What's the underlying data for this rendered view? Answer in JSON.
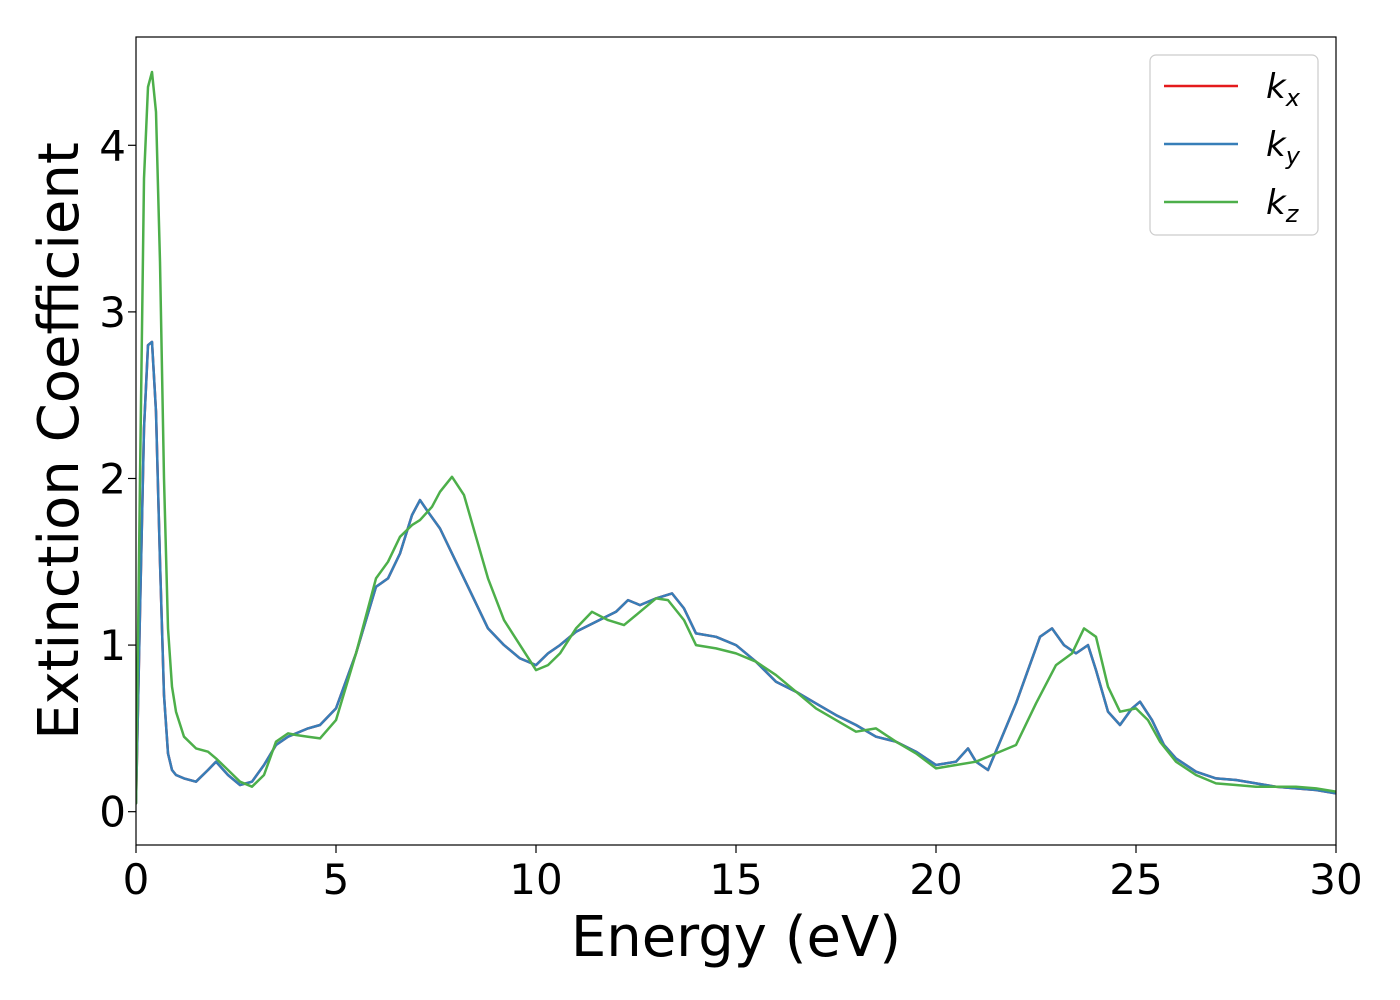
{
  "chart_data": {
    "type": "line",
    "title": "",
    "xlabel": "Energy (eV)",
    "ylabel": "Extinction Coefficient",
    "xlim": [
      0,
      30
    ],
    "ylim": [
      -0.2,
      4.65
    ],
    "xticks": [
      0,
      5,
      10,
      15,
      20,
      25,
      30
    ],
    "yticks": [
      0,
      1,
      2,
      3,
      4
    ],
    "grid": false,
    "legend_position": "top-right",
    "series": [
      {
        "name": "k_x",
        "legend_main": "k",
        "legend_sub": "x",
        "color": "#e41a1c",
        "x": [
          0,
          0.1,
          0.2,
          0.3,
          0.4,
          0.5,
          0.6,
          0.7,
          0.8,
          0.9,
          1.0,
          1.2,
          1.5,
          1.8,
          2.0,
          2.3,
          2.6,
          2.9,
          3.2,
          3.5,
          3.8,
          4.0,
          4.3,
          4.6,
          5.0,
          5.5,
          6.0,
          6.3,
          6.6,
          6.9,
          7.1,
          7.3,
          7.6,
          8.0,
          8.4,
          8.8,
          9.2,
          9.6,
          10.0,
          10.3,
          10.6,
          11.0,
          11.5,
          12.0,
          12.3,
          12.6,
          13.0,
          13.4,
          13.7,
          14.0,
          14.5,
          15.0,
          15.5,
          16.0,
          16.5,
          17.0,
          17.5,
          18.0,
          18.5,
          19.0,
          19.5,
          20.0,
          20.5,
          20.8,
          21.0,
          21.3,
          21.6,
          22.0,
          22.3,
          22.6,
          22.9,
          23.2,
          23.5,
          23.8,
          24.0,
          24.3,
          24.6,
          24.9,
          25.1,
          25.4,
          25.7,
          26.0,
          26.5,
          27.0,
          27.5,
          28.0,
          28.5,
          29.0,
          29.5,
          30.0
        ],
        "y": [
          0.05,
          1.2,
          2.3,
          2.8,
          2.82,
          2.4,
          1.5,
          0.7,
          0.35,
          0.25,
          0.22,
          0.2,
          0.18,
          0.25,
          0.3,
          0.22,
          0.16,
          0.18,
          0.28,
          0.4,
          0.45,
          0.47,
          0.5,
          0.52,
          0.62,
          0.95,
          1.35,
          1.4,
          1.55,
          1.78,
          1.87,
          1.8,
          1.7,
          1.5,
          1.3,
          1.1,
          1.0,
          0.92,
          0.88,
          0.95,
          1.0,
          1.08,
          1.14,
          1.2,
          1.27,
          1.24,
          1.28,
          1.31,
          1.22,
          1.07,
          1.05,
          1.0,
          0.9,
          0.78,
          0.72,
          0.65,
          0.58,
          0.52,
          0.45,
          0.42,
          0.36,
          0.28,
          0.3,
          0.38,
          0.3,
          0.25,
          0.42,
          0.65,
          0.85,
          1.05,
          1.1,
          1.0,
          0.95,
          1.0,
          0.85,
          0.6,
          0.52,
          0.62,
          0.66,
          0.55,
          0.4,
          0.32,
          0.24,
          0.2,
          0.19,
          0.17,
          0.15,
          0.14,
          0.13,
          0.11
        ]
      },
      {
        "name": "k_y",
        "legend_main": "k",
        "legend_sub": "y",
        "color": "#377eb8",
        "x": [
          0,
          0.1,
          0.2,
          0.3,
          0.4,
          0.5,
          0.6,
          0.7,
          0.8,
          0.9,
          1.0,
          1.2,
          1.5,
          1.8,
          2.0,
          2.3,
          2.6,
          2.9,
          3.2,
          3.5,
          3.8,
          4.0,
          4.3,
          4.6,
          5.0,
          5.5,
          6.0,
          6.3,
          6.6,
          6.9,
          7.1,
          7.3,
          7.6,
          8.0,
          8.4,
          8.8,
          9.2,
          9.6,
          10.0,
          10.3,
          10.6,
          11.0,
          11.5,
          12.0,
          12.3,
          12.6,
          13.0,
          13.4,
          13.7,
          14.0,
          14.5,
          15.0,
          15.5,
          16.0,
          16.5,
          17.0,
          17.5,
          18.0,
          18.5,
          19.0,
          19.5,
          20.0,
          20.5,
          20.8,
          21.0,
          21.3,
          21.6,
          22.0,
          22.3,
          22.6,
          22.9,
          23.2,
          23.5,
          23.8,
          24.0,
          24.3,
          24.6,
          24.9,
          25.1,
          25.4,
          25.7,
          26.0,
          26.5,
          27.0,
          27.5,
          28.0,
          28.5,
          29.0,
          29.5,
          30.0
        ],
        "y": [
          0.05,
          1.2,
          2.3,
          2.8,
          2.82,
          2.4,
          1.5,
          0.7,
          0.35,
          0.25,
          0.22,
          0.2,
          0.18,
          0.25,
          0.3,
          0.22,
          0.16,
          0.18,
          0.28,
          0.4,
          0.45,
          0.47,
          0.5,
          0.52,
          0.62,
          0.95,
          1.35,
          1.4,
          1.55,
          1.78,
          1.87,
          1.8,
          1.7,
          1.5,
          1.3,
          1.1,
          1.0,
          0.92,
          0.88,
          0.95,
          1.0,
          1.08,
          1.14,
          1.2,
          1.27,
          1.24,
          1.28,
          1.31,
          1.22,
          1.07,
          1.05,
          1.0,
          0.9,
          0.78,
          0.72,
          0.65,
          0.58,
          0.52,
          0.45,
          0.42,
          0.36,
          0.28,
          0.3,
          0.38,
          0.3,
          0.25,
          0.42,
          0.65,
          0.85,
          1.05,
          1.1,
          1.0,
          0.95,
          1.0,
          0.85,
          0.6,
          0.52,
          0.62,
          0.66,
          0.55,
          0.4,
          0.32,
          0.24,
          0.2,
          0.19,
          0.17,
          0.15,
          0.14,
          0.13,
          0.11
        ]
      },
      {
        "name": "k_z",
        "legend_main": "k",
        "legend_sub": "z",
        "color": "#4daf4a",
        "x": [
          0,
          0.1,
          0.2,
          0.3,
          0.4,
          0.5,
          0.6,
          0.7,
          0.8,
          0.9,
          1.0,
          1.2,
          1.5,
          1.8,
          2.0,
          2.3,
          2.6,
          2.9,
          3.2,
          3.5,
          3.8,
          4.0,
          4.3,
          4.6,
          5.0,
          5.5,
          6.0,
          6.3,
          6.6,
          6.9,
          7.1,
          7.4,
          7.6,
          7.9,
          8.2,
          8.5,
          8.8,
          9.2,
          9.6,
          10.0,
          10.3,
          10.6,
          11.0,
          11.4,
          11.8,
          12.2,
          12.6,
          13.0,
          13.3,
          13.7,
          14.0,
          14.5,
          15.0,
          15.5,
          16.0,
          16.5,
          17.0,
          17.5,
          18.0,
          18.5,
          19.0,
          19.5,
          20.0,
          20.5,
          21.0,
          21.5,
          22.0,
          22.5,
          23.0,
          23.4,
          23.7,
          24.0,
          24.3,
          24.6,
          25.0,
          25.3,
          25.6,
          26.0,
          26.5,
          27.0,
          27.5,
          28.0,
          28.5,
          29.0,
          29.5,
          30.0
        ],
        "y": [
          0.05,
          2.0,
          3.8,
          4.35,
          4.44,
          4.2,
          3.3,
          2.0,
          1.1,
          0.75,
          0.6,
          0.45,
          0.38,
          0.36,
          0.32,
          0.25,
          0.18,
          0.15,
          0.22,
          0.42,
          0.47,
          0.46,
          0.45,
          0.44,
          0.55,
          0.95,
          1.4,
          1.5,
          1.65,
          1.72,
          1.75,
          1.83,
          1.92,
          2.01,
          1.9,
          1.65,
          1.4,
          1.15,
          1.0,
          0.85,
          0.88,
          0.95,
          1.1,
          1.2,
          1.15,
          1.12,
          1.2,
          1.28,
          1.27,
          1.15,
          1.0,
          0.98,
          0.95,
          0.9,
          0.82,
          0.72,
          0.62,
          0.55,
          0.48,
          0.5,
          0.42,
          0.35,
          0.26,
          0.28,
          0.3,
          0.35,
          0.4,
          0.65,
          0.88,
          0.95,
          1.1,
          1.05,
          0.75,
          0.6,
          0.62,
          0.55,
          0.42,
          0.3,
          0.22,
          0.17,
          0.16,
          0.15,
          0.15,
          0.15,
          0.14,
          0.12
        ]
      }
    ]
  }
}
